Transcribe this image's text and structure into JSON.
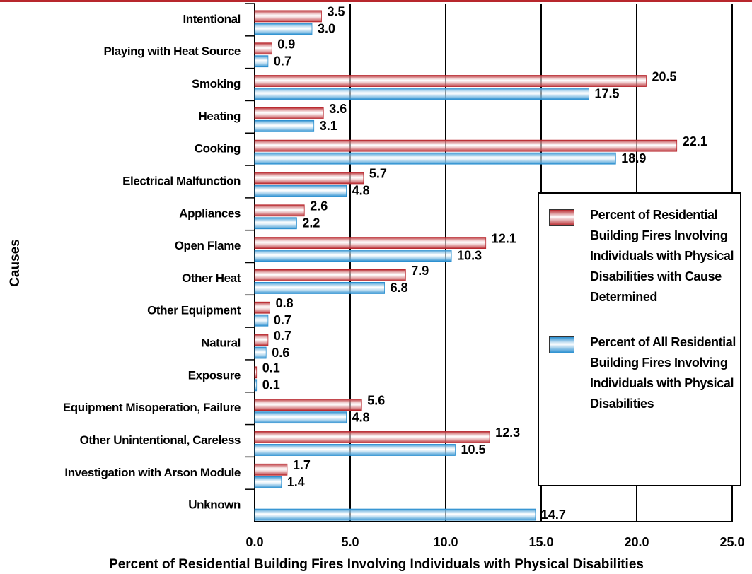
{
  "chart_data": {
    "type": "hbar",
    "x_label": "Percent of Residential Building Fires Involving Individuals with Physical Disabilities",
    "y_label": "Causes",
    "categories": [
      "Intentional",
      "Playing with Heat Source",
      "Smoking",
      "Heating",
      "Cooking",
      "Electrical Malfunction",
      "Appliances",
      "Open Flame",
      "Other Heat",
      "Other Equipment",
      "Natural",
      "Exposure",
      "Equipment Misoperation, Failure",
      "Other Unintentional, Careless",
      "Investigation with Arson Module",
      "Unknown"
    ],
    "series": [
      {
        "name": "Percent of Residential Building Fires Involving Individuals with Physical Disabilities with Cause Determined",
        "color": "#b8272d",
        "values": [
          3.5,
          0.9,
          20.5,
          3.6,
          22.1,
          5.7,
          2.6,
          12.1,
          7.9,
          0.8,
          0.7,
          0.1,
          5.6,
          12.3,
          1.7,
          null
        ],
        "value_labels": [
          "3.5",
          "0.9",
          "20.5",
          "3.6",
          "22.1",
          "5.7",
          "2.6",
          "12.1",
          "7.9",
          "0.8",
          "0.7",
          "0.1",
          "5.6",
          "12.3",
          "1.7",
          null
        ]
      },
      {
        "name": "Percent of All Residential Building Fires Involving Individuals with Physical Disabilities",
        "color": "#2a8fd0",
        "values": [
          3.0,
          0.7,
          17.5,
          3.1,
          18.9,
          4.8,
          2.2,
          10.3,
          6.8,
          0.7,
          0.6,
          0.1,
          4.8,
          10.5,
          1.4,
          14.7
        ],
        "value_labels": [
          "3.0",
          "0.7",
          "17.5",
          "3.1",
          "18.9",
          "4.8",
          "2.2",
          "10.3",
          "6.8",
          "0.7",
          "0.6",
          "0.1",
          "4.8",
          "10.5",
          "1.4",
          "14.7"
        ]
      }
    ],
    "xlim": [
      0,
      25
    ],
    "xticks": [
      {
        "value": 0,
        "label": "0.0"
      },
      {
        "value": 5,
        "label": "5.0"
      },
      {
        "value": 10,
        "label": "10.0"
      },
      {
        "value": 15,
        "label": "15.0"
      },
      {
        "value": 20,
        "label": "20.0"
      },
      {
        "value": 25,
        "label": "25.0"
      }
    ],
    "grid": true,
    "legend": "right"
  }
}
